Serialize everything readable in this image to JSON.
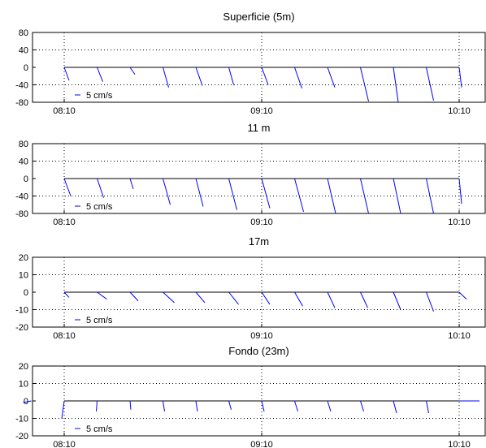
{
  "chart_data": [
    {
      "type": "quiver",
      "title": "Superficie (5m)",
      "xticks": [
        "08:10",
        "09:10",
        "10:10"
      ],
      "ylim": [
        -80,
        80
      ],
      "yticks": [
        80,
        40,
        0,
        -40,
        -80
      ],
      "legend": "5 cm/s",
      "grid": true,
      "series": [
        {
          "t": "08:10",
          "dx": 6,
          "dy": -30
        },
        {
          "t": "08:20",
          "dx": 7,
          "dy": -33
        },
        {
          "t": "08:30",
          "dx": 6,
          "dy": -16
        },
        {
          "t": "08:40",
          "dx": 7,
          "dy": -46
        },
        {
          "t": "08:50",
          "dx": 8,
          "dy": -42
        },
        {
          "t": "09:00",
          "dx": 6,
          "dy": -40
        },
        {
          "t": "09:10",
          "dx": 8,
          "dy": -40
        },
        {
          "t": "09:20",
          "dx": 9,
          "dy": -48
        },
        {
          "t": "09:30",
          "dx": 9,
          "dy": -46
        },
        {
          "t": "09:40",
          "dx": 10,
          "dy": -78
        },
        {
          "t": "09:50",
          "dx": 6,
          "dy": -80
        },
        {
          "t": "10:00",
          "dx": 9,
          "dy": -76
        },
        {
          "t": "10:10",
          "dx": 3,
          "dy": -46
        }
      ]
    },
    {
      "type": "quiver",
      "title": "11 m",
      "xticks": [
        "08:10",
        "09:10",
        "10:10"
      ],
      "ylim": [
        -80,
        80
      ],
      "yticks": [
        80,
        40,
        0,
        -40,
        -80
      ],
      "legend": "5 cm/s",
      "grid": true,
      "series": [
        {
          "t": "08:10",
          "dx": 8,
          "dy": -40
        },
        {
          "t": "08:20",
          "dx": 8,
          "dy": -44
        },
        {
          "t": "08:30",
          "dx": 4,
          "dy": -24
        },
        {
          "t": "08:40",
          "dx": 9,
          "dy": -60
        },
        {
          "t": "08:50",
          "dx": 9,
          "dy": -64
        },
        {
          "t": "09:00",
          "dx": 10,
          "dy": -72
        },
        {
          "t": "09:10",
          "dx": 10,
          "dy": -68
        },
        {
          "t": "09:20",
          "dx": 11,
          "dy": -76
        },
        {
          "t": "09:30",
          "dx": 10,
          "dy": -80
        },
        {
          "t": "09:40",
          "dx": 10,
          "dy": -80
        },
        {
          "t": "09:50",
          "dx": 9,
          "dy": -80
        },
        {
          "t": "10:00",
          "dx": 9,
          "dy": -80
        },
        {
          "t": "10:10",
          "dx": 3,
          "dy": -58
        }
      ]
    },
    {
      "type": "quiver",
      "title": "17m",
      "xticks": [
        "08:10",
        "09:10",
        "10:10"
      ],
      "ylim": [
        -20,
        20
      ],
      "yticks": [
        20,
        10,
        0,
        -10,
        -20
      ],
      "legend": "5 cm/s",
      "grid": true,
      "series": [
        {
          "t": "08:10",
          "dx": 6,
          "dy": -3
        },
        {
          "t": "08:20",
          "dx": 12,
          "dy": -4
        },
        {
          "t": "08:30",
          "dx": 10,
          "dy": -5
        },
        {
          "t": "08:40",
          "dx": 14,
          "dy": -6
        },
        {
          "t": "08:50",
          "dx": 11,
          "dy": -6
        },
        {
          "t": "09:00",
          "dx": 12,
          "dy": -7
        },
        {
          "t": "09:10",
          "dx": 10,
          "dy": -7
        },
        {
          "t": "09:20",
          "dx": 10,
          "dy": -8
        },
        {
          "t": "09:30",
          "dx": 9,
          "dy": -9
        },
        {
          "t": "09:40",
          "dx": 9,
          "dy": -9
        },
        {
          "t": "09:50",
          "dx": 9,
          "dy": -10
        },
        {
          "t": "10:00",
          "dx": 9,
          "dy": -11
        },
        {
          "t": "10:10",
          "dx": 9,
          "dy": -4
        }
      ]
    },
    {
      "type": "quiver",
      "title": "Fondo (23m)",
      "xticks": [
        "08:10",
        "09:10",
        "10:10"
      ],
      "ylim": [
        -20,
        20
      ],
      "yticks": [
        20,
        10,
        0,
        -10,
        -20
      ],
      "legend": "5 cm/s",
      "grid": true,
      "series": [
        {
          "t": "08:00",
          "dx": -10,
          "dy": -1
        },
        {
          "t": "08:10",
          "dx": -3,
          "dy": -10
        },
        {
          "t": "08:20",
          "dx": -1,
          "dy": -6
        },
        {
          "t": "08:30",
          "dx": 1,
          "dy": -5
        },
        {
          "t": "08:40",
          "dx": 2,
          "dy": -6
        },
        {
          "t": "08:50",
          "dx": 2,
          "dy": -6
        },
        {
          "t": "09:00",
          "dx": 3,
          "dy": -5
        },
        {
          "t": "09:10",
          "dx": 3,
          "dy": -6
        },
        {
          "t": "09:20",
          "dx": 4,
          "dy": -6
        },
        {
          "t": "09:30",
          "dx": 4,
          "dy": -6
        },
        {
          "t": "09:40",
          "dx": 4,
          "dy": -6
        },
        {
          "t": "09:50",
          "dx": 4,
          "dy": -7
        },
        {
          "t": "10:00",
          "dx": 3,
          "dy": -7
        },
        {
          "t": "10:10",
          "dx": 25,
          "dy": 0
        }
      ]
    }
  ],
  "colors": {
    "arrow": "#0000ff",
    "axis": "#000000",
    "grid": "#000000"
  }
}
